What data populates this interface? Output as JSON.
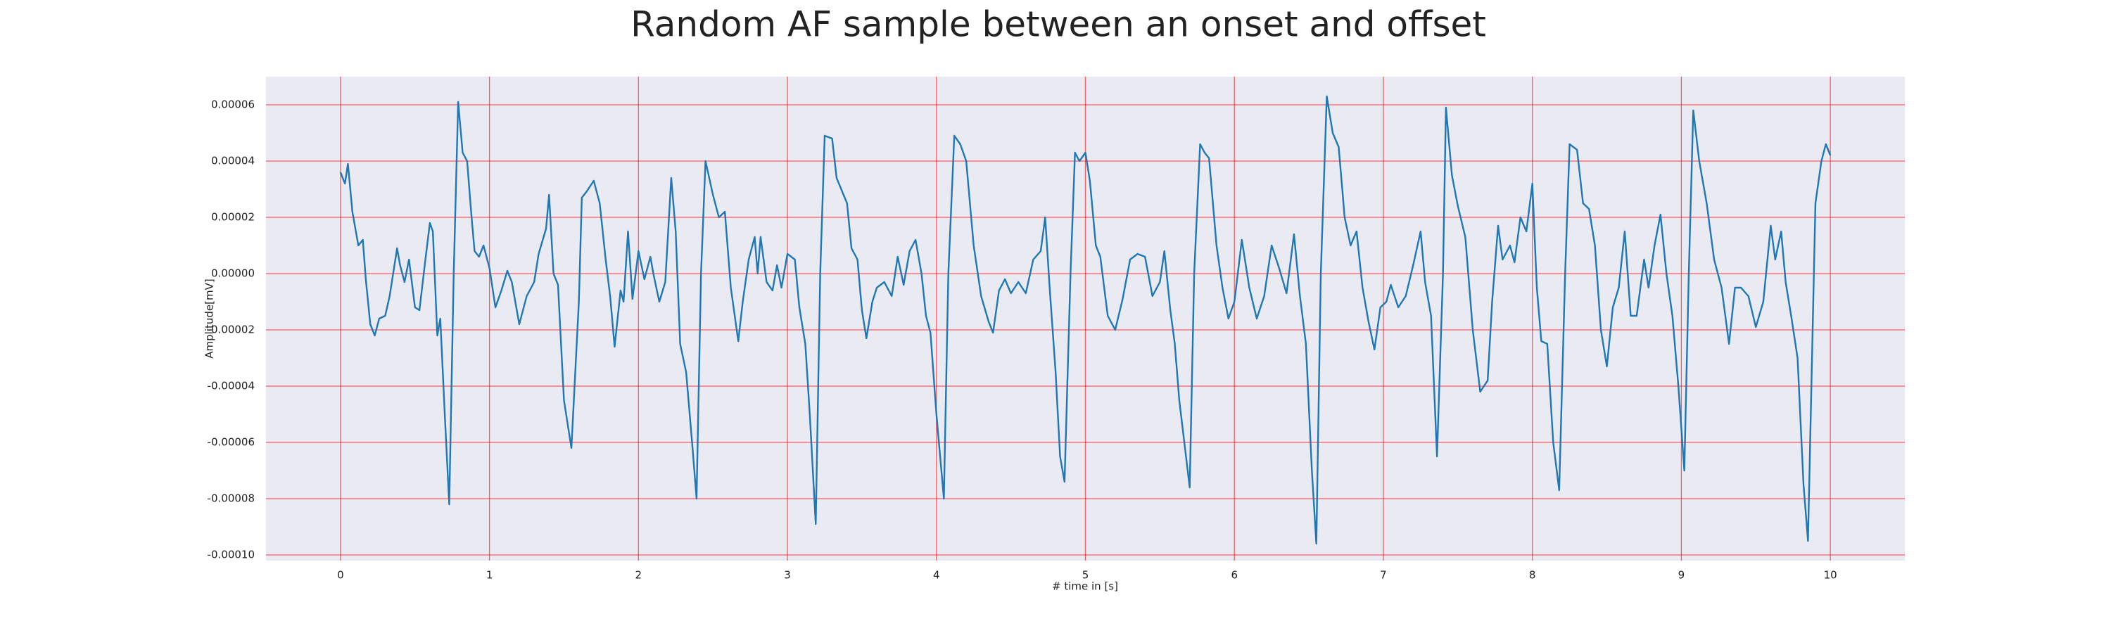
{
  "chart_data": {
    "type": "line",
    "title": "Random AF sample between an onset and offset",
    "xlabel": "# time in [s]",
    "ylabel": "Amplitude[mV]",
    "color": "#1f77b4",
    "grid": true,
    "grid_color": "#ff0000",
    "background": "#eaeaf2",
    "xlim": [
      -0.5,
      10.5
    ],
    "ylim": [
      -0.000102,
      7e-05
    ],
    "xticks": [
      0,
      1,
      2,
      3,
      4,
      5,
      6,
      7,
      8,
      9,
      10
    ],
    "yticks": [
      6e-05,
      4e-05,
      2e-05,
      {
        "value": 0,
        "label": "0.00000"
      },
      -2e-05,
      -4e-05,
      -6e-05,
      -8e-05,
      {
        "value": -0.0001,
        "label": "-0.00010"
      }
    ],
    "x": [
      0,
      0.03,
      0.05,
      0.08,
      0.12,
      0.15,
      0.17,
      0.2,
      0.23,
      0.26,
      0.3,
      0.33,
      0.38,
      0.4,
      0.43,
      0.46,
      0.5,
      0.53,
      0.57,
      0.6,
      0.62,
      0.65,
      0.67,
      0.7,
      0.73,
      0.76,
      0.79,
      0.82,
      0.85,
      0.88,
      0.9,
      0.93,
      0.96,
      1,
      1.04,
      1.08,
      1.12,
      1.15,
      1.2,
      1.25,
      1.3,
      1.33,
      1.38,
      1.4,
      1.43,
      1.46,
      1.5,
      1.55,
      1.6,
      1.62,
      1.65,
      1.7,
      1.74,
      1.78,
      1.81,
      1.84,
      1.88,
      1.9,
      1.93,
      1.96,
      2,
      2.04,
      2.08,
      2.1,
      2.14,
      2.18,
      2.22,
      2.25,
      2.28,
      2.32,
      2.36,
      2.39,
      2.42,
      2.45,
      2.5,
      2.54,
      2.58,
      2.62,
      2.67,
      2.7,
      2.74,
      2.78,
      2.8,
      2.82,
      2.86,
      2.9,
      2.93,
      2.96,
      3,
      3.05,
      3.08,
      3.12,
      3.15,
      3.19,
      3.22,
      3.25,
      3.3,
      3.33,
      3.4,
      3.43,
      3.47,
      3.5,
      3.53,
      3.57,
      3.6,
      3.65,
      3.7,
      3.74,
      3.78,
      3.82,
      3.86,
      3.9,
      3.93,
      3.96,
      4,
      4.05,
      4.08,
      4.12,
      4.16,
      4.2,
      4.25,
      4.3,
      4.35,
      4.38,
      4.42,
      4.46,
      4.5,
      4.55,
      4.6,
      4.65,
      4.7,
      4.73,
      4.76,
      4.8,
      4.83,
      4.86,
      4.9,
      4.93,
      4.96,
      5,
      5.03,
      5.07,
      5.1,
      5.15,
      5.2,
      5.25,
      5.3,
      5.35,
      5.4,
      5.45,
      5.5,
      5.53,
      5.57,
      5.6,
      5.63,
      5.7,
      5.73,
      5.77,
      5.8,
      5.83,
      5.88,
      5.92,
      5.96,
      6,
      6.05,
      6.1,
      6.15,
      6.2,
      6.25,
      6.3,
      6.35,
      6.4,
      6.44,
      6.48,
      6.52,
      6.55,
      6.58,
      6.62,
      6.66,
      6.7,
      6.74,
      6.78,
      6.82,
      6.86,
      6.9,
      6.94,
      6.98,
      7.02,
      7.05,
      7.1,
      7.15,
      7.2,
      7.25,
      7.28,
      7.32,
      7.36,
      7.4,
      7.42,
      7.46,
      7.5,
      7.55,
      7.6,
      7.65,
      7.7,
      7.73,
      7.77,
      7.8,
      7.85,
      7.88,
      7.92,
      7.96,
      8,
      8.03,
      8.06,
      8.1,
      8.14,
      8.18,
      8.22,
      8.25,
      8.3,
      8.34,
      8.38,
      8.42,
      8.46,
      8.5,
      8.54,
      8.58,
      8.62,
      8.66,
      8.7,
      8.75,
      8.78,
      8.82,
      8.86,
      8.9,
      8.94,
      8.98,
      9.02,
      9.05,
      9.08,
      9.12,
      9.17,
      9.22,
      9.27,
      9.32,
      9.36,
      9.4,
      9.45,
      9.5,
      9.55,
      9.6,
      9.63,
      9.67,
      9.7,
      9.74,
      9.78,
      9.82,
      9.85,
      9.9,
      9.94,
      9.97,
      10
    ],
    "values": [
      3.6e-05,
      3.2e-05,
      3.9e-05,
      2.2e-05,
      1e-05,
      1.2e-05,
      -2e-06,
      -1.8e-05,
      -2.2e-05,
      -1.6e-05,
      -1.5e-05,
      -8e-06,
      9e-06,
      3e-06,
      -3e-06,
      5e-06,
      -1.2e-05,
      -1.3e-05,
      5e-06,
      1.8e-05,
      1.5e-05,
      -2.2e-05,
      -1.6e-05,
      -5e-05,
      -8.2e-05,
      0,
      6.1e-05,
      4.3e-05,
      4e-05,
      2e-05,
      8e-06,
      6e-06,
      1e-05,
      2e-06,
      -1.2e-05,
      -6e-06,
      1e-06,
      -3e-06,
      -1.8e-05,
      -8e-06,
      -3e-06,
      7e-06,
      1.6e-05,
      2.8e-05,
      0,
      -4e-06,
      -4.5e-05,
      -6.2e-05,
      -1e-05,
      2.7e-05,
      2.9e-05,
      3.3e-05,
      2.5e-05,
      5e-06,
      -8e-06,
      -2.6e-05,
      -6e-06,
      -1e-05,
      1.5e-05,
      -9e-06,
      8e-06,
      -2e-06,
      6e-06,
      0,
      -1e-05,
      -3e-06,
      3.4e-05,
      1.5e-05,
      -2.5e-05,
      -3.5e-05,
      -6e-05,
      -8e-05,
      0,
      4e-05,
      2.8e-05,
      2e-05,
      2.2e-05,
      -5e-06,
      -2.4e-05,
      -1e-05,
      5e-06,
      1.3e-05,
      0,
      1.3e-05,
      -3e-06,
      -6e-06,
      3e-06,
      -5e-06,
      7e-06,
      5e-06,
      -1.2e-05,
      -2.5e-05,
      -5e-05,
      -8.9e-05,
      0,
      4.9e-05,
      4.8e-05,
      3.4e-05,
      2.5e-05,
      9e-06,
      5e-06,
      -1.3e-05,
      -2.3e-05,
      -1e-05,
      -5e-06,
      -3e-06,
      -8e-06,
      6e-06,
      -4e-06,
      8e-06,
      1.2e-05,
      0,
      -1.5e-05,
      -2.1e-05,
      -5e-05,
      -8e-05,
      0,
      4.9e-05,
      4.6e-05,
      4e-05,
      1e-05,
      -8e-06,
      -1.7e-05,
      -2.1e-05,
      -6e-06,
      -2e-06,
      -7e-06,
      -3e-06,
      -7e-06,
      5e-06,
      8e-06,
      2e-05,
      -5e-06,
      -3.5e-05,
      -6.5e-05,
      -7.4e-05,
      0,
      4.3e-05,
      4e-05,
      4.3e-05,
      3.3e-05,
      1e-05,
      6e-06,
      -1.5e-05,
      -2e-05,
      -9e-06,
      5e-06,
      7e-06,
      6e-06,
      -8e-06,
      -3e-06,
      8e-06,
      -1.3e-05,
      -2.5e-05,
      -4.5e-05,
      -7.6e-05,
      0,
      4.6e-05,
      4.3e-05,
      4.1e-05,
      1e-05,
      -5e-06,
      -1.6e-05,
      -1e-05,
      1.2e-05,
      -5e-06,
      -1.6e-05,
      -8e-06,
      1e-05,
      2e-06,
      -7e-06,
      1.4e-05,
      -8e-06,
      -2.5e-05,
      -7e-05,
      -9.6e-05,
      0,
      6.3e-05,
      5e-05,
      4.5e-05,
      2e-05,
      1e-05,
      1.5e-05,
      -5e-06,
      -1.7e-05,
      -2.7e-05,
      -1.2e-05,
      -1e-05,
      -4e-06,
      -1.2e-05,
      -8e-06,
      3e-06,
      1.5e-05,
      -3e-06,
      -1.5e-05,
      -6.5e-05,
      0,
      5.9e-05,
      3.5e-05,
      2.4e-05,
      1.3e-05,
      -2e-05,
      -4.2e-05,
      -3.8e-05,
      -1e-05,
      1.7e-05,
      5e-06,
      1e-05,
      4e-06,
      2e-05,
      1.5e-05,
      3.2e-05,
      -5e-06,
      -2.4e-05,
      -2.5e-05,
      -6e-05,
      -7.7e-05,
      0,
      4.6e-05,
      4.4e-05,
      2.5e-05,
      2.3e-05,
      1e-05,
      -2e-05,
      -3.3e-05,
      -1.2e-05,
      -5e-06,
      1.5e-05,
      -1.5e-05,
      -1.5e-05,
      5e-06,
      -5e-06,
      1e-05,
      2.1e-05,
      0,
      -1.5e-05,
      -4e-05,
      -7e-05,
      0,
      5.8e-05,
      4e-05,
      2.5e-05,
      5e-06,
      -5e-06,
      -2.5e-05,
      -5e-06,
      -5e-06,
      -8e-06,
      -1.9e-05,
      -1e-05,
      1.7e-05,
      5e-06,
      1.5e-05,
      -3e-06,
      -1.6e-05,
      -3e-05,
      -7.5e-05,
      -9.5e-05,
      2.5e-05,
      4e-05,
      4.6e-05,
      4.2e-05
    ]
  }
}
